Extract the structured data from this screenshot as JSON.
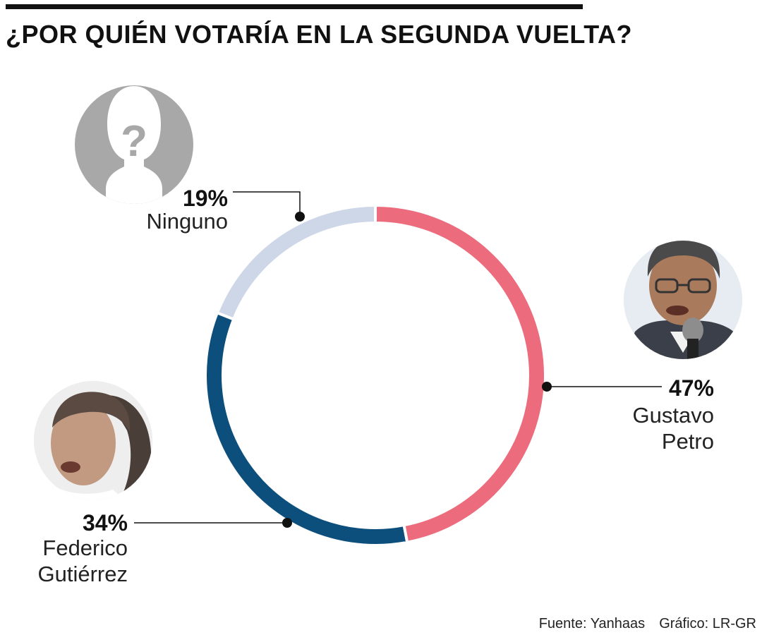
{
  "title": "¿POR QUIÉN VOTARÍA EN LA SEGUNDA VUELTA?",
  "chart_data": {
    "type": "pie",
    "style": "donut",
    "title": "¿POR QUIÉN VOTARÍA EN LA SEGUNDA VUELTA?",
    "slices": [
      {
        "label": "Gustavo Petro",
        "label_lines": [
          "Gustavo",
          "Petro"
        ],
        "value": 47,
        "display": "47%",
        "color": "#ec6b7c",
        "avatar": "gustavo-petro-photo"
      },
      {
        "label": "Federico Gutiérrez",
        "label_lines": [
          "Federico",
          "Gutiérrez"
        ],
        "value": 34,
        "display": "34%",
        "color": "#0d4f7c",
        "avatar": "federico-gutierrez-photo"
      },
      {
        "label": "Ninguno",
        "label_lines": [
          "Ninguno"
        ],
        "value": 19,
        "display": "19%",
        "color": "#cdd7e8",
        "avatar": "unknown-person-icon"
      }
    ],
    "start_angle": "top, clockwise"
  },
  "footer": {
    "source": "Fuente: Yanhaas",
    "credit": "Gráfico: LR-GR"
  }
}
